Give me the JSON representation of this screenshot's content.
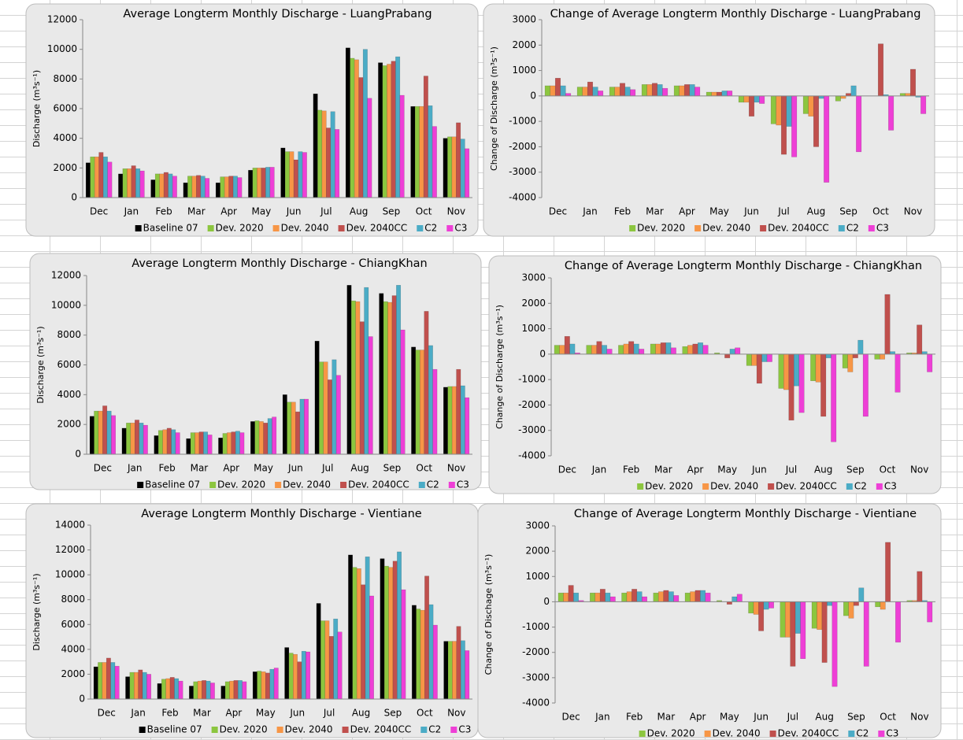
{
  "chart_data": [
    {
      "type": "bar",
      "title": "Average Longterm Monthly Discharge - LuangPrabang",
      "y_label": "Discharge (m³s⁻¹)",
      "categories": [
        "Dec",
        "Jan",
        "Feb",
        "Mar",
        "Apr",
        "May",
        "Jun",
        "Jul",
        "Aug",
        "Sep",
        "Oct",
        "Nov"
      ],
      "ylim": [
        0,
        12000
      ],
      "yticks": [
        0,
        2000,
        4000,
        6000,
        8000,
        10000,
        12000
      ],
      "series": [
        {
          "name": "Baseline 07",
          "color": "#000000",
          "values": [
            2350,
            1600,
            1200,
            1000,
            1000,
            1850,
            3350,
            7000,
            10100,
            9100,
            6150,
            4000
          ]
        },
        {
          "name": "Dev. 2020",
          "color": "#8cc63f",
          "values": [
            2750,
            1950,
            1600,
            1450,
            1400,
            2000,
            3100,
            5900,
            9400,
            8900,
            6150,
            4100
          ]
        },
        {
          "name": "Dev. 2040",
          "color": "#f79646",
          "values": [
            2750,
            1950,
            1600,
            1450,
            1400,
            2000,
            3100,
            5850,
            9300,
            9000,
            6150,
            4100
          ]
        },
        {
          "name": "Dev. 2040CC",
          "color": "#c0504d",
          "values": [
            3050,
            2150,
            1700,
            1500,
            1450,
            2000,
            2550,
            4700,
            8100,
            9200,
            8200,
            5050
          ]
        },
        {
          "name": "C2",
          "color": "#4bacc6",
          "values": [
            2750,
            1950,
            1600,
            1450,
            1450,
            2050,
            3100,
            5800,
            10000,
            9500,
            6200,
            3950
          ]
        },
        {
          "name": "C3",
          "color": "#ee3fd6",
          "values": [
            2400,
            1800,
            1450,
            1300,
            1350,
            2050,
            3050,
            4600,
            6700,
            6900,
            4800,
            3300
          ]
        }
      ]
    },
    {
      "type": "bar",
      "title": "Change of Average Longterm Monthly Discharge - LuangPrabang",
      "y_label": "Change of Discharge (m³s⁻¹)",
      "categories": [
        "Dec",
        "Jan",
        "Feb",
        "Mar",
        "Apr",
        "May",
        "Jun",
        "Jul",
        "Aug",
        "Sep",
        "Oct",
        "Nov"
      ],
      "ylim": [
        -4000,
        3000
      ],
      "yticks": [
        -4000,
        -3000,
        -2000,
        -1000,
        0,
        1000,
        2000,
        3000
      ],
      "series": [
        {
          "name": "Dev. 2020",
          "color": "#8cc63f",
          "values": [
            400,
            350,
            350,
            450,
            400,
            150,
            -250,
            -1100,
            -700,
            -200,
            0,
            100
          ]
        },
        {
          "name": "Dev. 2040",
          "color": "#f79646",
          "values": [
            400,
            350,
            350,
            450,
            400,
            150,
            -250,
            -1150,
            -800,
            -100,
            0,
            100
          ]
        },
        {
          "name": "Dev. 2040CC",
          "color": "#c0504d",
          "values": [
            700,
            550,
            500,
            500,
            450,
            150,
            -800,
            -2300,
            -2000,
            100,
            2050,
            1050
          ]
        },
        {
          "name": "C2",
          "color": "#4bacc6",
          "values": [
            400,
            350,
            350,
            450,
            450,
            200,
            -250,
            -1200,
            -100,
            400,
            50,
            -50
          ]
        },
        {
          "name": "C3",
          "color": "#ee3fd6",
          "values": [
            100,
            200,
            250,
            300,
            350,
            200,
            -300,
            -2400,
            -3400,
            -2200,
            -1350,
            -700
          ]
        }
      ]
    },
    {
      "type": "bar",
      "title": "Average Longterm Monthly Discharge - ChiangKhan",
      "y_label": "Discharge (m³s⁻¹)",
      "categories": [
        "Dec",
        "Jan",
        "Feb",
        "Mar",
        "Apr",
        "May",
        "Jun",
        "Jul",
        "Aug",
        "Sep",
        "Oct",
        "Nov"
      ],
      "ylim": [
        0,
        12000
      ],
      "yticks": [
        0,
        2000,
        4000,
        6000,
        8000,
        10000,
        12000
      ],
      "series": [
        {
          "name": "Baseline 07",
          "color": "#000000",
          "values": [
            2550,
            1750,
            1250,
            1050,
            1100,
            2200,
            4000,
            7600,
            11350,
            10800,
            7200,
            4500
          ]
        },
        {
          "name": "Dev. 2020",
          "color": "#8cc63f",
          "values": [
            2900,
            2100,
            1600,
            1450,
            1400,
            2250,
            3500,
            6200,
            10300,
            10250,
            7000,
            4550
          ]
        },
        {
          "name": "Dev. 2040",
          "color": "#f79646",
          "values": [
            2900,
            2100,
            1650,
            1450,
            1450,
            2200,
            3500,
            6200,
            10250,
            10200,
            7000,
            4550
          ]
        },
        {
          "name": "Dev. 2040CC",
          "color": "#c0504d",
          "values": [
            3250,
            2300,
            1750,
            1500,
            1500,
            2100,
            2850,
            5000,
            8900,
            10650,
            9600,
            5700
          ]
        },
        {
          "name": "C2",
          "color": "#4bacc6",
          "values": [
            2900,
            2100,
            1650,
            1500,
            1550,
            2400,
            3700,
            6350,
            11200,
            11350,
            7300,
            4600
          ]
        },
        {
          "name": "C3",
          "color": "#ee3fd6",
          "values": [
            2600,
            1950,
            1450,
            1300,
            1450,
            2500,
            3700,
            5300,
            7900,
            8350,
            5700,
            3800
          ]
        }
      ]
    },
    {
      "type": "bar",
      "title": "Change of Average Longterm Monthly Discharge - ChiangKhan",
      "y_label": "Change of Discharge (m³s⁻¹)",
      "categories": [
        "Dec",
        "Jan",
        "Feb",
        "Mar",
        "Apr",
        "May",
        "Jun",
        "Jul",
        "Aug",
        "Sep",
        "Oct",
        "Nov"
      ],
      "ylim": [
        -4000,
        3000
      ],
      "yticks": [
        -4000,
        -3000,
        -2000,
        -1000,
        0,
        1000,
        2000,
        3000
      ],
      "series": [
        {
          "name": "Dev. 2020",
          "color": "#8cc63f",
          "values": [
            350,
            350,
            350,
            400,
            300,
            50,
            -450,
            -1350,
            -1050,
            -550,
            -200,
            50
          ]
        },
        {
          "name": "Dev. 2040",
          "color": "#f79646",
          "values": [
            350,
            350,
            400,
            400,
            350,
            0,
            -450,
            -1400,
            -1100,
            -700,
            -200,
            50
          ]
        },
        {
          "name": "Dev. 2040CC",
          "color": "#c0504d",
          "values": [
            700,
            500,
            500,
            450,
            400,
            -150,
            -1150,
            -2600,
            -2450,
            -150,
            2350,
            1150
          ]
        },
        {
          "name": "C2",
          "color": "#4bacc6",
          "values": [
            400,
            350,
            400,
            450,
            450,
            200,
            -300,
            -1250,
            -150,
            550,
            100,
            100
          ]
        },
        {
          "name": "C3",
          "color": "#ee3fd6",
          "values": [
            50,
            200,
            200,
            250,
            350,
            250,
            -300,
            -2300,
            -3450,
            -2450,
            -1500,
            -700
          ]
        }
      ]
    },
    {
      "type": "bar",
      "title": "Average Longterm Monthly Discharge - Vientiane",
      "y_label": "Discharge (m³s⁻¹)",
      "categories": [
        "Dec",
        "Jan",
        "Feb",
        "Mar",
        "Apr",
        "May",
        "Jun",
        "Jul",
        "Aug",
        "Sep",
        "Oct",
        "Nov"
      ],
      "ylim": [
        0,
        14000
      ],
      "yticks": [
        0,
        2000,
        4000,
        6000,
        8000,
        10000,
        12000,
        14000
      ],
      "series": [
        {
          "name": "Baseline 07",
          "color": "#000000",
          "values": [
            2600,
            1800,
            1250,
            1050,
            1050,
            2200,
            4150,
            7700,
            11600,
            11300,
            7550,
            4650
          ]
        },
        {
          "name": "Dev. 2020",
          "color": "#8cc63f",
          "values": [
            2950,
            2150,
            1600,
            1400,
            1400,
            2250,
            3700,
            6300,
            10600,
            10700,
            7250,
            4650
          ]
        },
        {
          "name": "Dev. 2040",
          "color": "#f79646",
          "values": [
            2950,
            2150,
            1650,
            1450,
            1450,
            2200,
            3600,
            6300,
            10500,
            10600,
            7150,
            4650
          ]
        },
        {
          "name": "Dev. 2040CC",
          "color": "#c0504d",
          "values": [
            3300,
            2350,
            1750,
            1500,
            1500,
            2100,
            3000,
            5050,
            9200,
            11100,
            9900,
            5850
          ]
        },
        {
          "name": "C2",
          "color": "#4bacc6",
          "values": [
            2950,
            2150,
            1650,
            1450,
            1500,
            2400,
            3850,
            6450,
            11450,
            11850,
            7600,
            4700
          ]
        },
        {
          "name": "C3",
          "color": "#ee3fd6",
          "values": [
            2650,
            2000,
            1450,
            1300,
            1400,
            2500,
            3800,
            5400,
            8300,
            8800,
            5950,
            3900
          ]
        }
      ]
    },
    {
      "type": "bar",
      "title": "Change of Average Longterm Monthly Discharge - Vientiane",
      "y_label": "Change of Dischage (m³s⁻¹)",
      "categories": [
        "Dec",
        "Jan",
        "Feb",
        "Mar",
        "Apr",
        "May",
        "Jun",
        "Jul",
        "Aug",
        "Sep",
        "Oct",
        "Nov"
      ],
      "ylim": [
        -4000,
        3000
      ],
      "yticks": [
        -4000,
        -3000,
        -2000,
        -1000,
        0,
        1000,
        2000,
        3000
      ],
      "series": [
        {
          "name": "Dev. 2020",
          "color": "#8cc63f",
          "values": [
            350,
            350,
            350,
            350,
            350,
            50,
            -450,
            -1400,
            -1050,
            -550,
            -200,
            50
          ]
        },
        {
          "name": "Dev. 2040",
          "color": "#f79646",
          "values": [
            350,
            350,
            400,
            400,
            400,
            0,
            -500,
            -1400,
            -1100,
            -650,
            -300,
            50
          ]
        },
        {
          "name": "Dev. 2040CC",
          "color": "#c0504d",
          "values": [
            650,
            500,
            500,
            450,
            450,
            -100,
            -1150,
            -2550,
            -2400,
            -150,
            2350,
            1200
          ]
        },
        {
          "name": "C2",
          "color": "#4bacc6",
          "values": [
            350,
            350,
            400,
            400,
            450,
            200,
            -300,
            -1250,
            -150,
            550,
            0,
            50
          ]
        },
        {
          "name": "C3",
          "color": "#ee3fd6",
          "values": [
            50,
            200,
            200,
            250,
            350,
            300,
            -250,
            -2250,
            -3350,
            -2550,
            -1600,
            -800
          ]
        }
      ]
    }
  ]
}
